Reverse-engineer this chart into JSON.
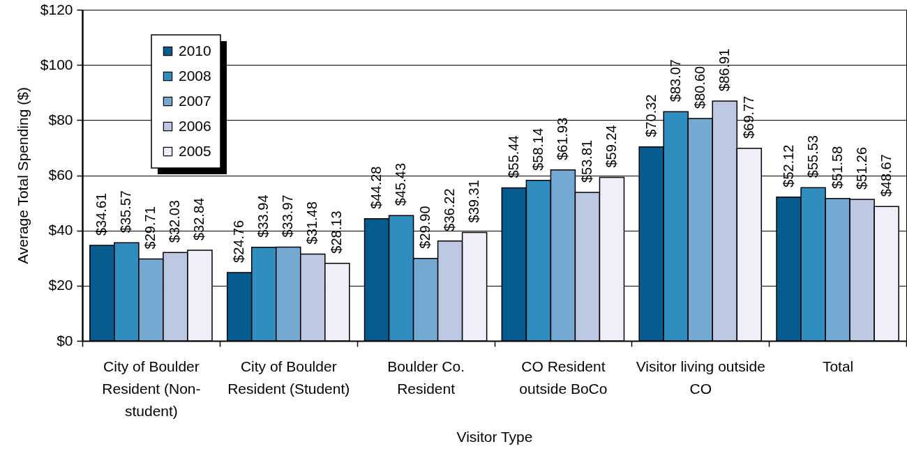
{
  "chart_data": {
    "type": "bar",
    "xlabel": "Visitor Type",
    "ylabel": "Average Total Spending ($)",
    "categories": [
      "City of Boulder Resident (Non-student)",
      "City of Boulder Resident (Student)",
      "Boulder Co. Resident",
      "CO Resident outside BoCo",
      "Visitor living outside CO",
      "Total"
    ],
    "series": [
      {
        "name": "2010",
        "color": "#065b8f",
        "values": [
          34.61,
          24.76,
          44.28,
          55.44,
          70.32,
          52.12
        ],
        "value_labels": [
          "$34.61",
          "$24.76",
          "$44.28",
          "$55.44",
          "$70.32",
          "$52.12"
        ]
      },
      {
        "name": "2008",
        "color": "#2f8dc0",
        "values": [
          35.57,
          33.94,
          45.43,
          58.14,
          83.07,
          55.53
        ],
        "value_labels": [
          "$35.57",
          "$33.94",
          "$45.43",
          "$58.14",
          "$83.07",
          "$55.53"
        ]
      },
      {
        "name": "2007",
        "color": "#74aad1",
        "values": [
          29.71,
          33.97,
          29.9,
          61.93,
          80.6,
          51.58
        ],
        "value_labels": [
          "$29.71",
          "$33.97",
          "$29.90",
          "$61.93",
          "$80.60",
          "$51.58"
        ]
      },
      {
        "name": "2006",
        "color": "#bcc8e1",
        "values": [
          32.03,
          31.48,
          36.22,
          53.81,
          86.91,
          51.26
        ],
        "value_labels": [
          "$32.03",
          "$31.48",
          "$36.22",
          "$53.81",
          "$86.91",
          "$51.26"
        ]
      },
      {
        "name": "2005",
        "color": "#f0eef8",
        "values": [
          32.84,
          28.13,
          39.31,
          59.24,
          69.77,
          48.67
        ],
        "value_labels": [
          "$32.84",
          "$28.13",
          "$39.31",
          "$59.24",
          "$69.77",
          "$48.67"
        ]
      }
    ],
    "ylim": [
      0,
      120
    ],
    "yticks": [
      {
        "value": 0,
        "label": "$0"
      },
      {
        "value": 20,
        "label": "$20"
      },
      {
        "value": 40,
        "label": "$40"
      },
      {
        "value": 60,
        "label": "$60"
      },
      {
        "value": 80,
        "label": "$80"
      },
      {
        "value": 100,
        "label": "$100"
      },
      {
        "value": 120,
        "label": "$120"
      }
    ],
    "grid": "y",
    "legend": "top left"
  }
}
